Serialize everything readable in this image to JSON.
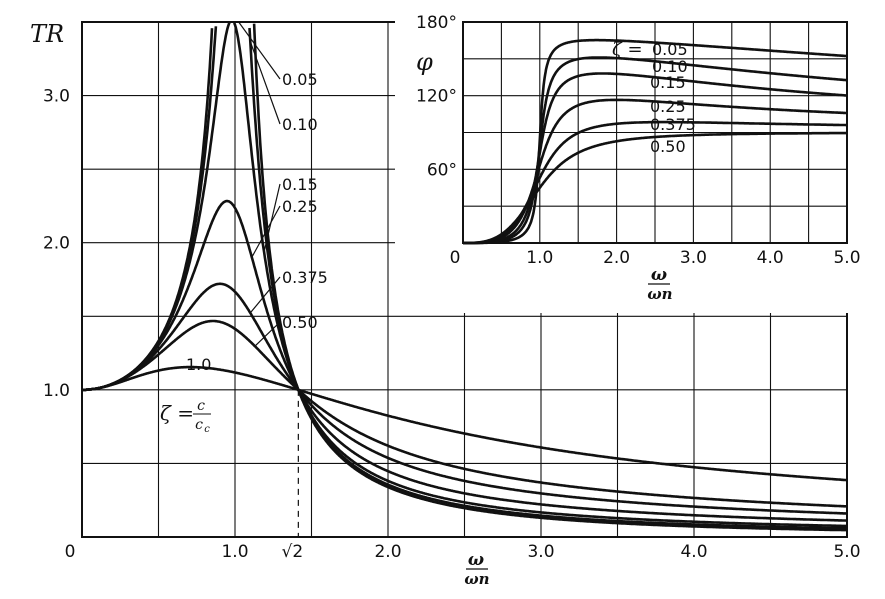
{
  "chart_data": [
    {
      "type": "line",
      "ylabel": "TR",
      "xlabel_num": "ω",
      "xlabel_den": "ωn",
      "xlim": [
        0,
        5.0
      ],
      "ylim": [
        0,
        3.5
      ],
      "x_ticks": [
        0,
        1.0,
        2.0,
        3.0,
        4.0,
        5.0
      ],
      "x_tick_labels": [
        "0",
        "1.0",
        "2.0",
        "3.0",
        "4.0",
        "5.0"
      ],
      "y_ticks": [
        1.0,
        2.0,
        3.0
      ],
      "y_tick_labels": [
        "1.0",
        "2.0",
        "3.0"
      ],
      "special_tick": {
        "x": 1.414,
        "label": "√2"
      },
      "zeta_formula": {
        "lhs": "ζ =",
        "num": "c",
        "den": "c",
        "den_sub": "c"
      },
      "grid": true,
      "series": [
        {
          "name": "0.05",
          "zeta": 0.05
        },
        {
          "name": "0.10",
          "zeta": 0.1
        },
        {
          "name": "0.15",
          "zeta": 0.15
        },
        {
          "name": "0.25",
          "zeta": 0.25
        },
        {
          "name": "0.375",
          "zeta": 0.375
        },
        {
          "name": "0.50",
          "zeta": 0.5
        },
        {
          "name": "1.0",
          "zeta": 1.0
        }
      ]
    },
    {
      "type": "line",
      "ylabel": "φ",
      "xlabel_num": "ω",
      "xlabel_den": "ωn",
      "xlim": [
        0,
        5.0
      ],
      "ylim": [
        0,
        180
      ],
      "x_ticks": [
        0,
        1.0,
        2.0,
        3.0,
        4.0,
        5.0
      ],
      "x_tick_labels": [
        "0",
        "1.0",
        "2.0",
        "3.0",
        "4.0",
        "5.0"
      ],
      "y_ticks": [
        60,
        120,
        180
      ],
      "y_tick_labels": [
        "60°",
        "120°",
        "180°"
      ],
      "legend_prefix": "ζ =",
      "grid": true,
      "series": [
        {
          "name": "0.05",
          "zeta": 0.05
        },
        {
          "name": "0.10",
          "zeta": 0.1
        },
        {
          "name": "0.15",
          "zeta": 0.15
        },
        {
          "name": "0.25",
          "zeta": 0.25
        },
        {
          "name": "0.375",
          "zeta": 0.375
        },
        {
          "name": "0.50",
          "zeta": 0.5
        }
      ]
    }
  ]
}
